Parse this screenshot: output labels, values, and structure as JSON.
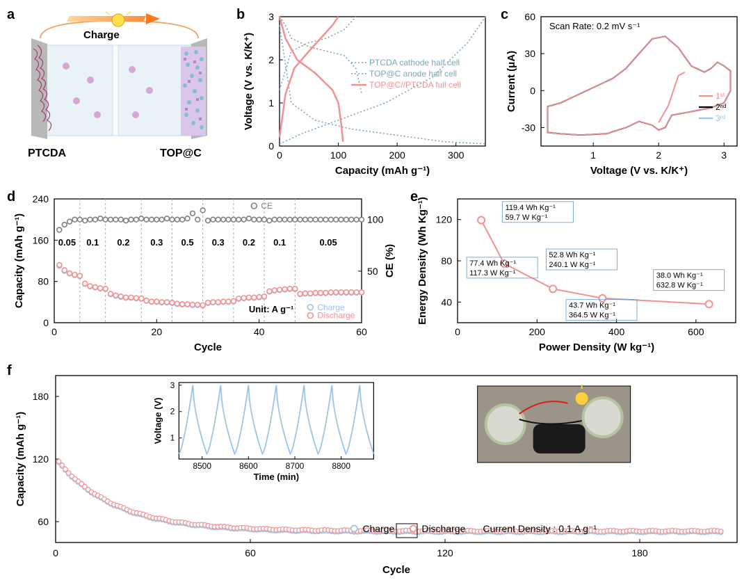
{
  "panels": {
    "a": {
      "label": "a",
      "charge_label": "Charge",
      "left_label": "PTCDA",
      "right_label": "TOP@C"
    },
    "b": {
      "label": "b",
      "xlabel": "Capacity (mAh g⁻¹)",
      "ylabel": "Voltage (V vs. K/K⁺)",
      "xlim": [
        0,
        350
      ],
      "xtick_step": 100,
      "ylim": [
        0,
        3
      ],
      "ytick_step": 1,
      "legend": {
        "ptcda": "PTCDA cathode half cell",
        "top": "TOP@C anode half cell",
        "full": "TOP@C//PTCDA full cell"
      },
      "colors": {
        "dotted": "#7aa7b8",
        "full": "#f59090"
      },
      "series": {
        "ptcda_dis": [
          [
            0,
            3.0
          ],
          [
            10,
            2.8
          ],
          [
            20,
            2.5
          ],
          [
            50,
            2.3
          ],
          [
            80,
            2.2
          ],
          [
            110,
            2.1
          ],
          [
            130,
            1.8
          ],
          [
            140,
            1.2
          ]
        ],
        "ptcda_chg": [
          [
            0,
            1.3
          ],
          [
            20,
            2.2
          ],
          [
            50,
            2.4
          ],
          [
            80,
            2.5
          ],
          [
            110,
            2.7
          ],
          [
            130,
            3.0
          ]
        ],
        "top_dis": [
          [
            0,
            2.8
          ],
          [
            20,
            1.0
          ],
          [
            60,
            0.6
          ],
          [
            120,
            0.4
          ],
          [
            200,
            0.25
          ],
          [
            280,
            0.1
          ],
          [
            350,
            0.05
          ]
        ],
        "top_chg": [
          [
            0,
            0.05
          ],
          [
            40,
            0.3
          ],
          [
            100,
            0.6
          ],
          [
            180,
            1.0
          ],
          [
            260,
            1.6
          ],
          [
            320,
            2.4
          ],
          [
            350,
            3.0
          ]
        ],
        "full_dis": [
          [
            0,
            3.0
          ],
          [
            10,
            2.5
          ],
          [
            30,
            2.0
          ],
          [
            60,
            1.7
          ],
          [
            90,
            1.3
          ],
          [
            100,
            1.0
          ],
          [
            105,
            0.5
          ],
          [
            108,
            0.1
          ]
        ],
        "full_chg": [
          [
            0,
            0.2
          ],
          [
            10,
            1.2
          ],
          [
            25,
            1.8
          ],
          [
            50,
            2.2
          ],
          [
            70,
            2.5
          ],
          [
            90,
            2.8
          ],
          [
            100,
            3.0
          ]
        ]
      }
    },
    "c": {
      "label": "c",
      "xlabel": "Voltage (V vs. K/K⁺)",
      "ylabel": "Current (μA)",
      "xlim": [
        0.2,
        3.2
      ],
      "xticks": [
        1,
        2,
        3
      ],
      "ylim": [
        -45,
        60
      ],
      "yticks": [
        -30,
        0,
        30,
        60
      ],
      "scan_rate": "Scan Rate: 0.2 mV s⁻¹",
      "legend": {
        "c1": "1ˢᵗ",
        "c2": "2ⁿᵈ",
        "c3": "3ʳᵈ"
      },
      "colors": {
        "c1": "#f59090",
        "c2": "#000000",
        "c3": "#9bc5e8"
      },
      "cv": [
        [
          0.3,
          -34
        ],
        [
          0.5,
          -35
        ],
        [
          0.8,
          -36
        ],
        [
          1.2,
          -35
        ],
        [
          1.5,
          -30
        ],
        [
          1.7,
          -25
        ],
        [
          1.9,
          -28
        ],
        [
          2.0,
          -32
        ],
        [
          2.1,
          -30
        ],
        [
          2.2,
          -20
        ],
        [
          2.4,
          -18
        ],
        [
          2.6,
          -16
        ],
        [
          2.8,
          -14
        ],
        [
          3.0,
          -10
        ],
        [
          3.1,
          0
        ],
        [
          3.1,
          16
        ],
        [
          3.0,
          20
        ],
        [
          2.9,
          23
        ],
        [
          2.8,
          18
        ],
        [
          2.7,
          15
        ],
        [
          2.5,
          20
        ],
        [
          2.3,
          35
        ],
        [
          2.1,
          44
        ],
        [
          1.9,
          42
        ],
        [
          1.7,
          30
        ],
        [
          1.5,
          18
        ],
        [
          1.3,
          10
        ],
        [
          1.1,
          5
        ],
        [
          0.9,
          0
        ],
        [
          0.7,
          -5
        ],
        [
          0.5,
          -10
        ],
        [
          0.3,
          -13
        ]
      ],
      "cv1_extra": [
        [
          2.0,
          -26
        ],
        [
          2.15,
          -12
        ],
        [
          2.3,
          12
        ],
        [
          2.4,
          15
        ]
      ]
    },
    "d": {
      "label": "d",
      "xlabel": "Cycle",
      "ylabel": "Capacity (mAh g⁻¹)",
      "y2label": "CE (%)",
      "xlim": [
        0,
        60
      ],
      "xtick_step": 20,
      "ylim": [
        0,
        240
      ],
      "ytick_step": 80,
      "y2lim": [
        0,
        120
      ],
      "y2ticks": [
        50,
        100
      ],
      "unit_text": "Unit: A g⁻¹",
      "rates": [
        "0.05",
        "0.1",
        "0.2",
        "0.3",
        "0.5",
        "0.3",
        "0.2",
        "0.1",
        "0.05"
      ],
      "rate_boundaries": [
        0,
        5,
        10,
        17,
        23,
        29,
        35,
        41,
        47,
        60
      ],
      "legend": {
        "ce": "CE",
        "chg": "Charge",
        "dis": "Discharge"
      },
      "colors": {
        "ce": "#808080",
        "chg": "#9bc5e8",
        "dis": "#f59090"
      },
      "charge": [
        110,
        100,
        95,
        92,
        90,
        75,
        70,
        68,
        66,
        65,
        55,
        52,
        50,
        48,
        48,
        47,
        46,
        42,
        40,
        40,
        39,
        39,
        38,
        36,
        35,
        35,
        34,
        34,
        33,
        38,
        39,
        39,
        40,
        40,
        41,
        46,
        47,
        48,
        48,
        49,
        50,
        60,
        62,
        63,
        64,
        65,
        65,
        55,
        56,
        56,
        57,
        57,
        57,
        58,
        58,
        58,
        58,
        58,
        58,
        58
      ],
      "discharge": [
        112,
        102,
        96,
        93,
        91,
        76,
        71,
        69,
        67,
        66,
        56,
        53,
        51,
        49,
        49,
        48,
        47,
        43,
        41,
        41,
        40,
        40,
        39,
        37,
        36,
        36,
        35,
        35,
        34,
        39,
        40,
        40,
        41,
        41,
        42,
        47,
        48,
        49,
        49,
        50,
        51,
        61,
        63,
        64,
        65,
        66,
        66,
        56,
        57,
        57,
        58,
        58,
        58,
        59,
        59,
        59,
        59,
        59,
        59,
        59
      ],
      "ce": [
        90,
        95,
        98,
        100,
        100,
        99,
        100,
        100,
        101,
        100,
        100,
        100,
        100,
        99,
        100,
        100,
        101,
        100,
        100,
        100,
        100,
        101,
        100,
        100,
        100,
        101,
        106,
        100,
        109,
        99,
        100,
        100,
        100,
        100,
        100,
        100,
        100,
        101,
        100,
        100,
        100,
        99,
        100,
        100,
        100,
        100,
        100,
        100,
        100,
        100,
        100,
        100,
        100,
        100,
        100,
        100,
        100,
        100,
        100,
        100
      ]
    },
    "e": {
      "label": "e",
      "xlabel": "Power Density (W kg⁻¹)",
      "ylabel": "Energy Density (Wh Kg⁻¹)",
      "xlim": [
        0,
        700
      ],
      "xtick_step": 200,
      "ylim": [
        20,
        140
      ],
      "ytick_step": 40,
      "color": "#f59090",
      "points": [
        {
          "x": 59.7,
          "y": 119.4,
          "lbl1": "119.4 Wh Kg⁻¹",
          "lbl2": "59.7 W Kg⁻¹"
        },
        {
          "x": 117.3,
          "y": 77.4,
          "lbl1": "77.4 Wh Kg⁻¹",
          "lbl2": "117.3 W Kg⁻¹"
        },
        {
          "x": 240.1,
          "y": 52.8,
          "lbl1": "52.8 Wh Kg⁻¹",
          "lbl2": "240.1 W Kg⁻¹"
        },
        {
          "x": 364.5,
          "y": 43.7,
          "lbl1": "43.7 Wh Kg⁻¹",
          "lbl2": "364.5 W Kg⁻¹"
        },
        {
          "x": 632.8,
          "y": 38.0,
          "lbl1": "38.0 Wh Kg⁻¹",
          "lbl2": "632.8 W Kg⁻¹"
        }
      ]
    },
    "f": {
      "label": "f",
      "xlabel": "Cycle",
      "ylabel": "Capacity (mAh g⁻¹)",
      "xlim": [
        0,
        210
      ],
      "xticks": [
        0,
        60,
        120,
        180
      ],
      "ylim": [
        40,
        200
      ],
      "yticks": [
        60,
        120,
        180
      ],
      "legend": {
        "chg": "Charge",
        "dis": "Discharge",
        "cd": "Current Density : 0.1 A g⁻¹"
      },
      "colors": {
        "chg": "#9bc5e8",
        "dis": "#f59090"
      },
      "inset": {
        "xlabel": "Time (min)",
        "ylabel": "Voltage (V)",
        "xlim": [
          8450,
          8870
        ],
        "xticks": [
          8500,
          8600,
          8700,
          8800
        ],
        "ylim": [
          0.2,
          3.1
        ],
        "yticks": [
          1,
          2,
          3
        ],
        "color": "#9bc5e8"
      }
    }
  }
}
